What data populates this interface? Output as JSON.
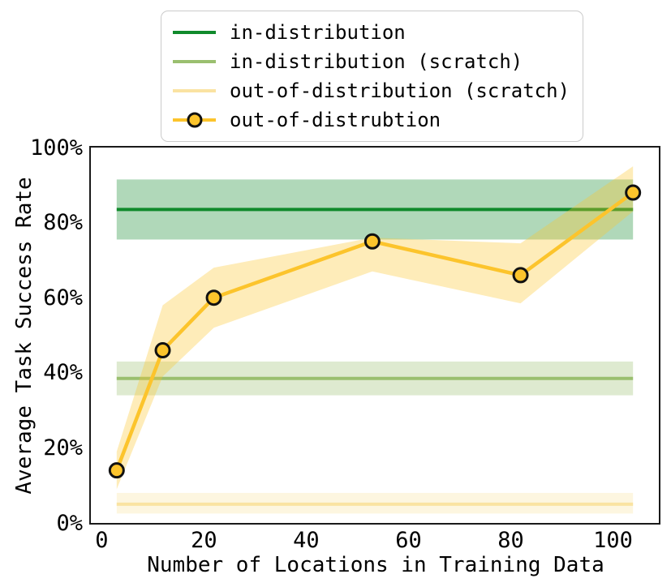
{
  "figure": {
    "background": "#ffffff",
    "text_color": "#000000"
  },
  "chart_data": {
    "type": "line",
    "title": "",
    "xlabel": "Number of Locations in Training Data",
    "ylabel": "Average Task Success Rate",
    "xlim": [
      -2.05,
      109.05
    ],
    "ylim": [
      0,
      100
    ],
    "grid": false,
    "band_opacity": 0.33,
    "legend": {
      "location": "upper center, above plot",
      "border_color": "#cbcbcb"
    },
    "x_ticks": [
      {
        "value": 0,
        "label": "0"
      },
      {
        "value": 20,
        "label": "20"
      },
      {
        "value": 40,
        "label": "40"
      },
      {
        "value": 60,
        "label": "60"
      },
      {
        "value": 80,
        "label": "80"
      },
      {
        "value": 100,
        "label": "100"
      }
    ],
    "y_ticks": [
      {
        "value": 0,
        "label": "0%"
      },
      {
        "value": 20,
        "label": "20%"
      },
      {
        "value": 40,
        "label": "40%"
      },
      {
        "value": 60,
        "label": "60%"
      },
      {
        "value": 80,
        "label": "80%"
      },
      {
        "value": 100,
        "label": "100%"
      }
    ],
    "series": [
      {
        "name": "in-distribution",
        "type": "hband",
        "color": "#108a2c",
        "mean": 83.5,
        "band": [
          75.5,
          91.5
        ],
        "x_start": 3,
        "x_end": 104
      },
      {
        "name": "in-distribution (scratch)",
        "type": "hband",
        "color": "#9abf6f",
        "mean": 38.5,
        "band": [
          34,
          43
        ],
        "x_start": 3,
        "x_end": 104
      },
      {
        "name": "out-of-distribution (scratch)",
        "type": "hband",
        "color": "#fae3a2",
        "mean": 5,
        "band": [
          2.5,
          8
        ],
        "x_start": 3,
        "x_end": 104
      },
      {
        "name": "out-of-distrubtion",
        "type": "line_with_band",
        "color": "#fcc42c",
        "marker": "circle",
        "marker_edge_color": "#111111",
        "x": [
          3,
          12,
          22,
          53,
          82,
          104
        ],
        "y": [
          14,
          46,
          60,
          75,
          66,
          88
        ],
        "band_low": [
          9,
          39,
          52,
          67,
          58.5,
          83
        ],
        "band_high": [
          19,
          58,
          68,
          76,
          74.5,
          95
        ]
      }
    ]
  }
}
